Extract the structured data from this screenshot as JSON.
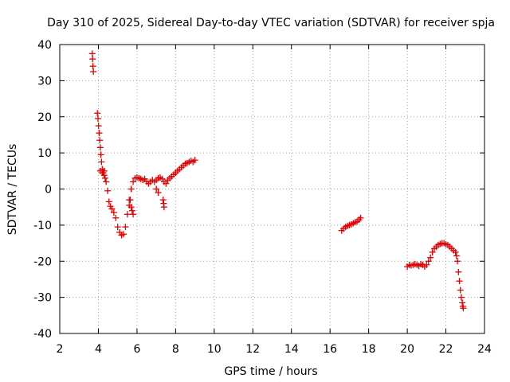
{
  "chart_data": {
    "type": "scatter",
    "title": "Day 310 of 2025, Sidereal Day-to-day VTEC variation (SDTVAR) for receiver spja",
    "xlabel": "GPS time / hours",
    "ylabel": "SDTVAR / TECUs",
    "xlim": [
      2,
      24
    ],
    "ylim": [
      -40,
      40
    ],
    "xticks": [
      2,
      4,
      6,
      8,
      10,
      12,
      14,
      16,
      18,
      20,
      22,
      24
    ],
    "yticks": [
      -40,
      -30,
      -20,
      -10,
      0,
      10,
      20,
      30,
      40
    ],
    "xtick_labels": [
      "2",
      "4",
      "6",
      "8",
      "10",
      "12",
      "14",
      "16",
      "18",
      "20",
      "22",
      "24"
    ],
    "ytick_labels": [
      "-40",
      "-30",
      "-20",
      "-10",
      "0",
      "10",
      "20",
      "30",
      "40"
    ],
    "grid": true,
    "marker": "+",
    "series_color": "#e00000",
    "series": [
      {
        "name": "spja",
        "x": [
          3.68,
          3.7,
          3.72,
          3.74,
          3.95,
          3.98,
          4.01,
          4.04,
          4.07,
          4.1,
          4.13,
          4.16,
          4.2,
          4.25,
          4.3,
          4.35,
          4.4,
          4.48,
          4.55,
          4.62,
          4.7,
          4.8,
          4.9,
          5.0,
          5.1,
          5.2,
          5.3,
          5.4,
          5.5,
          5.6,
          5.7,
          5.8,
          5.9,
          6.0,
          6.1,
          6.2,
          6.3,
          6.4,
          6.5,
          6.6,
          6.7,
          6.8,
          6.9,
          7.0,
          7.1,
          7.2,
          7.3,
          7.4,
          7.5,
          7.6,
          7.7,
          7.8,
          7.9,
          8.0,
          8.1,
          8.2,
          8.3,
          8.4,
          8.5,
          8.6,
          8.7,
          8.8,
          8.9,
          9.0,
          4.1,
          4.2,
          4.3,
          5.6,
          5.65,
          5.7,
          5.75,
          5.8,
          7.0,
          7.1,
          7.35,
          7.38,
          7.4,
          16.6,
          16.7,
          16.8,
          16.9,
          17.0,
          17.1,
          17.2,
          17.3,
          17.4,
          17.5,
          17.58,
          20.0,
          20.1,
          20.2,
          20.3,
          20.4,
          20.5,
          20.6,
          20.7,
          20.8,
          20.9,
          21.0,
          21.1,
          21.2,
          21.3,
          21.4,
          21.5,
          21.6,
          21.7,
          21.8,
          21.9,
          22.0,
          22.1,
          22.2,
          22.3,
          22.4,
          22.5,
          22.55,
          22.6,
          22.65,
          22.7,
          22.75,
          22.8,
          22.85,
          22.88,
          22.9
        ],
        "y": [
          37.5,
          36.0,
          34.0,
          32.5,
          21.0,
          19.5,
          17.5,
          15.5,
          13.5,
          11.5,
          9.5,
          7.5,
          5.5,
          4.5,
          3.8,
          3.0,
          2.0,
          -0.5,
          -3.5,
          -4.8,
          -5.5,
          -6.5,
          -8.0,
          -10.5,
          -12.0,
          -12.8,
          -12.5,
          -10.5,
          -7.0,
          -3.0,
          0.0,
          2.0,
          3.0,
          3.2,
          3.0,
          2.8,
          2.5,
          2.8,
          2.0,
          1.5,
          2.0,
          2.5,
          2.0,
          2.5,
          3.0,
          3.2,
          2.8,
          2.0,
          1.5,
          2.5,
          3.0,
          3.5,
          4.0,
          4.5,
          5.0,
          5.5,
          6.0,
          6.5,
          7.0,
          7.2,
          7.5,
          7.8,
          7.5,
          8.0,
          5.0,
          4.5,
          5.0,
          -4.5,
          -3.0,
          -5.0,
          -6.0,
          -7.0,
          0.0,
          -1.0,
          -3.0,
          -4.0,
          -5.0,
          -11.5,
          -11.0,
          -10.5,
          -10.2,
          -10.0,
          -9.8,
          -9.5,
          -9.2,
          -9.0,
          -8.5,
          -8.0,
          -21.5,
          -21.0,
          -21.2,
          -21.0,
          -20.8,
          -21.0,
          -21.3,
          -20.8,
          -21.0,
          -21.5,
          -21.0,
          -20.0,
          -19.0,
          -17.5,
          -16.5,
          -16.0,
          -15.5,
          -15.2,
          -15.0,
          -15.0,
          -15.3,
          -15.5,
          -16.0,
          -16.5,
          -17.0,
          -17.5,
          -18.5,
          -20.0,
          -23.0,
          -25.5,
          -28.0,
          -30.0,
          -31.5,
          -32.5,
          -33.0
        ]
      }
    ]
  }
}
